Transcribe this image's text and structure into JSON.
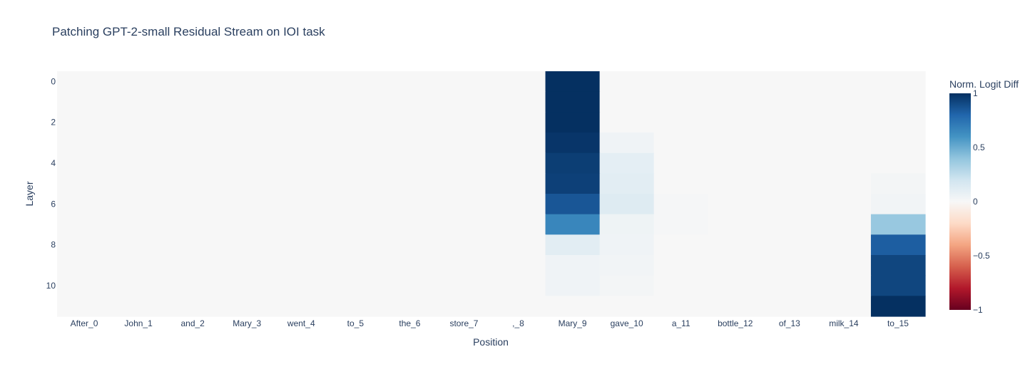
{
  "chart_data": {
    "type": "heatmap",
    "title": "Patching GPT-2-small Residual Stream on IOI task",
    "xlabel": "Position",
    "ylabel": "Layer",
    "x": [
      "After_0",
      "John_1",
      "and_2",
      "Mary_3",
      "went_4",
      "to_5",
      "the_6",
      "store_7",
      ",_8",
      "Mary_9",
      "gave_10",
      "a_11",
      "bottle_12",
      "of_13",
      "milk_14",
      "to_15"
    ],
    "y": [
      0,
      1,
      2,
      3,
      4,
      5,
      6,
      7,
      8,
      9,
      10,
      11
    ],
    "y_tick_labels": [
      "0",
      "2",
      "4",
      "6",
      "8",
      "10"
    ],
    "z": [
      [
        0,
        0,
        0,
        0,
        0,
        0,
        0,
        0,
        0,
        1.0,
        0,
        0,
        0,
        0,
        0,
        0
      ],
      [
        0,
        0,
        0,
        0,
        0,
        0,
        0,
        0,
        0,
        1.0,
        0,
        0,
        0,
        0,
        0,
        0
      ],
      [
        0,
        0,
        0,
        0,
        0,
        0,
        0,
        0,
        0,
        1.0,
        0,
        0,
        0,
        0,
        0,
        0
      ],
      [
        0,
        0,
        0,
        0,
        0,
        0,
        0,
        0,
        0,
        0.98,
        0.04,
        0,
        0,
        0,
        0,
        0
      ],
      [
        0,
        0,
        0,
        0,
        0,
        0,
        0,
        0,
        0,
        0.95,
        0.1,
        0,
        0,
        0,
        0,
        0
      ],
      [
        0,
        0,
        0,
        0,
        0,
        0,
        0,
        0,
        0,
        0.94,
        0.11,
        0,
        0,
        0,
        0,
        0.02
      ],
      [
        0,
        0,
        0,
        0,
        0,
        0,
        0,
        0,
        0,
        0.86,
        0.13,
        0.01,
        0,
        0,
        0,
        0.03
      ],
      [
        0,
        0,
        0,
        0,
        0,
        0,
        0,
        0,
        0,
        0.66,
        0.05,
        0.01,
        0,
        0,
        0,
        0.38
      ],
      [
        0,
        0,
        0,
        0,
        0,
        0,
        0,
        0,
        0,
        0.11,
        0.04,
        0,
        0,
        0,
        0,
        0.83
      ],
      [
        0,
        0,
        0,
        0,
        0,
        0,
        0,
        0,
        0,
        0.04,
        0.03,
        0,
        0,
        0,
        0,
        0.92
      ],
      [
        0,
        0,
        0,
        0,
        0,
        0,
        0,
        0,
        0,
        0.04,
        0.02,
        0,
        0,
        0,
        0,
        0.92
      ],
      [
        0,
        0,
        0,
        0,
        0,
        0,
        0,
        0,
        0,
        0,
        0,
        0,
        0,
        0,
        0,
        1.0
      ]
    ],
    "zlim": [
      -1,
      1
    ],
    "colorscale": "RdBu",
    "colorbar": {
      "title": "Norm. Logit Diff",
      "ticks": [
        1,
        0.5,
        0,
        -0.5,
        -1
      ],
      "tick_labels": [
        "1",
        "0.5",
        "0",
        "−0.5",
        "−1"
      ]
    }
  }
}
